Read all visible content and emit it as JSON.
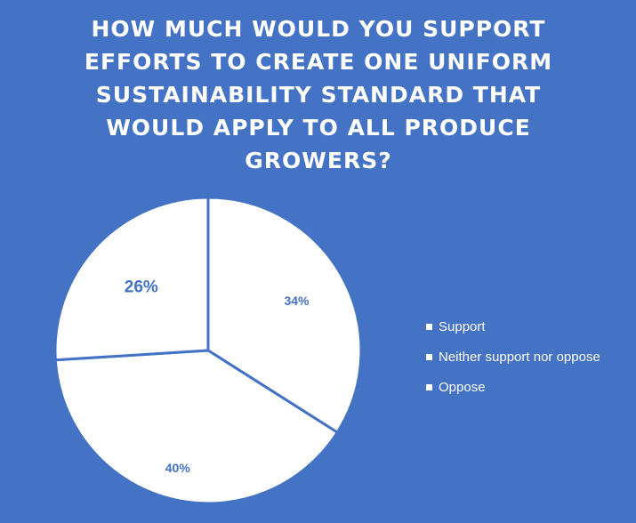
{
  "chart_data": {
    "type": "pie",
    "title": "HOW MUCH WOULD YOU SUPPORT EFFORTS TO CREATE ONE UNIFORM SUSTAINABILITY STANDARD THAT WOULD APPLY TO ALL PRODUCE GROWERS?",
    "title_lines": [
      "HOW MUCH WOULD YOU SUPPORT",
      "EFFORTS TO CREATE ONE UNIFORM",
      "SUSTAINABILITY STANDARD THAT",
      "WOULD APPLY TO ALL PRODUCE",
      "GROWERS?"
    ],
    "categories": [
      "Support",
      "Neither support nor oppose",
      "Oppose"
    ],
    "values": [
      34,
      40,
      26
    ],
    "labels": [
      "34%",
      "40%",
      "26%"
    ],
    "legend_position": "right",
    "colors": {
      "background": "#4472C4",
      "slice_fill": "#FFFFFF",
      "slice_border": "#4472C4",
      "label_text": "#4472C4",
      "legend_text": "#FFFFFF"
    }
  }
}
